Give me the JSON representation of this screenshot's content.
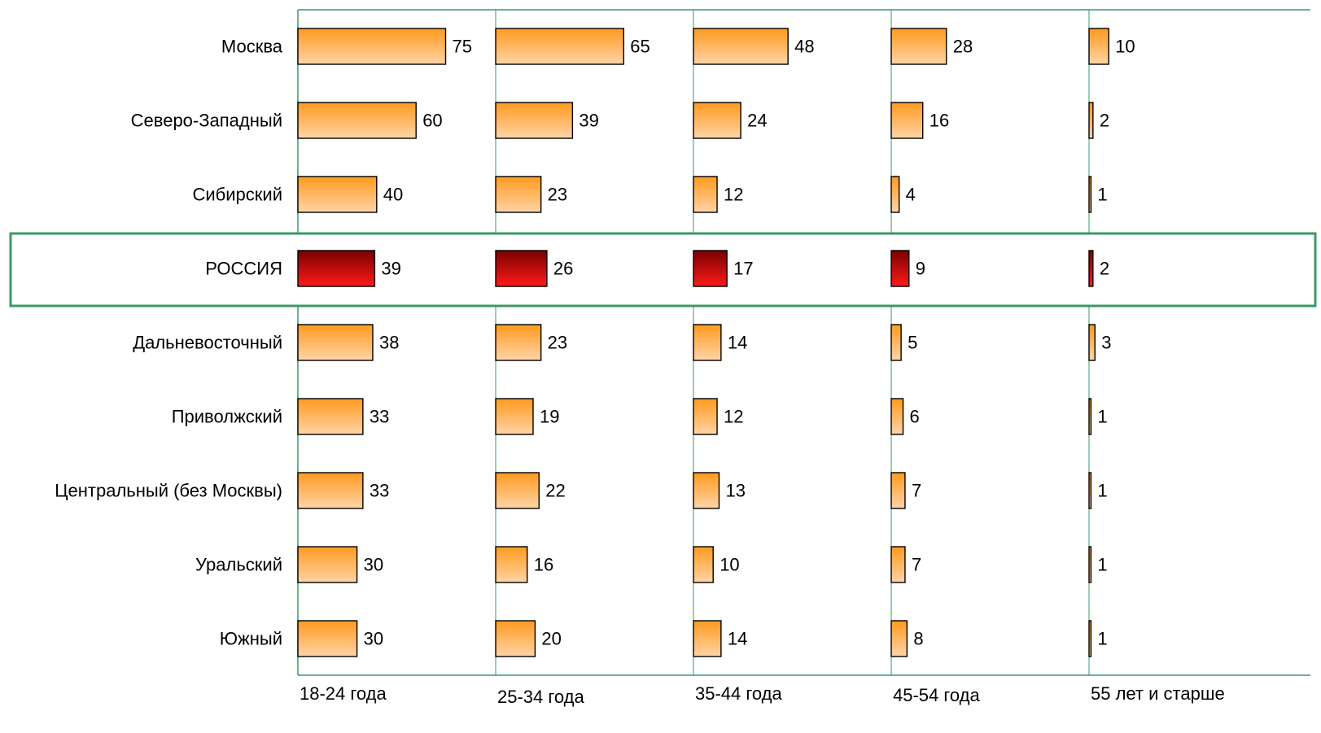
{
  "chart_data": {
    "type": "bar",
    "orientation": "horizontal",
    "layout": "small-multiples",
    "categories": [
      "Москва",
      "Северо-Западный",
      "Сибирский",
      "РОССИЯ",
      "Дальневосточный",
      "Приволжский",
      "Центральный (без Москвы)",
      "Уральский",
      "Южный"
    ],
    "highlight_category": "РОССИЯ",
    "panels": [
      {
        "label": "18-24 года",
        "values": [
          75,
          60,
          40,
          39,
          38,
          33,
          33,
          30,
          30
        ]
      },
      {
        "label": "25-34 года",
        "values": [
          65,
          39,
          23,
          26,
          23,
          19,
          22,
          16,
          20
        ]
      },
      {
        "label": "35-44 года",
        "values": [
          48,
          24,
          12,
          17,
          14,
          12,
          13,
          10,
          14
        ]
      },
      {
        "label": "45-54 года",
        "values": [
          28,
          16,
          4,
          9,
          5,
          6,
          7,
          7,
          8
        ]
      },
      {
        "label": "55 лет и старше",
        "values": [
          10,
          2,
          1,
          2,
          3,
          1,
          1,
          1,
          1
        ]
      }
    ],
    "xlim": [
      0,
      100
    ],
    "grid": true,
    "legend": "none",
    "title": "",
    "xlabel": "",
    "ylabel": ""
  },
  "colors": {
    "bar_top": "#ff9a1e",
    "bar_bottom": "#ffd4a8",
    "highlight_top": "#7a0000",
    "highlight_bottom": "#ff1a1a",
    "panel_border": "#3c9a64",
    "highlight_border": "#3c9a64"
  }
}
